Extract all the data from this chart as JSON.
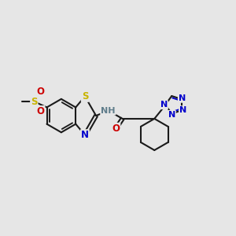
{
  "bg_color": "#e6e6e6",
  "bond_color": "#1a1a1a",
  "bond_width": 1.5,
  "atom_colors": {
    "S": "#c8b400",
    "N": "#0000cc",
    "O": "#cc0000",
    "H": "#607d8b",
    "C": "#1a1a1a"
  },
  "font_size": 8.5,
  "xlim": [
    0,
    10
  ],
  "ylim": [
    0,
    8
  ]
}
